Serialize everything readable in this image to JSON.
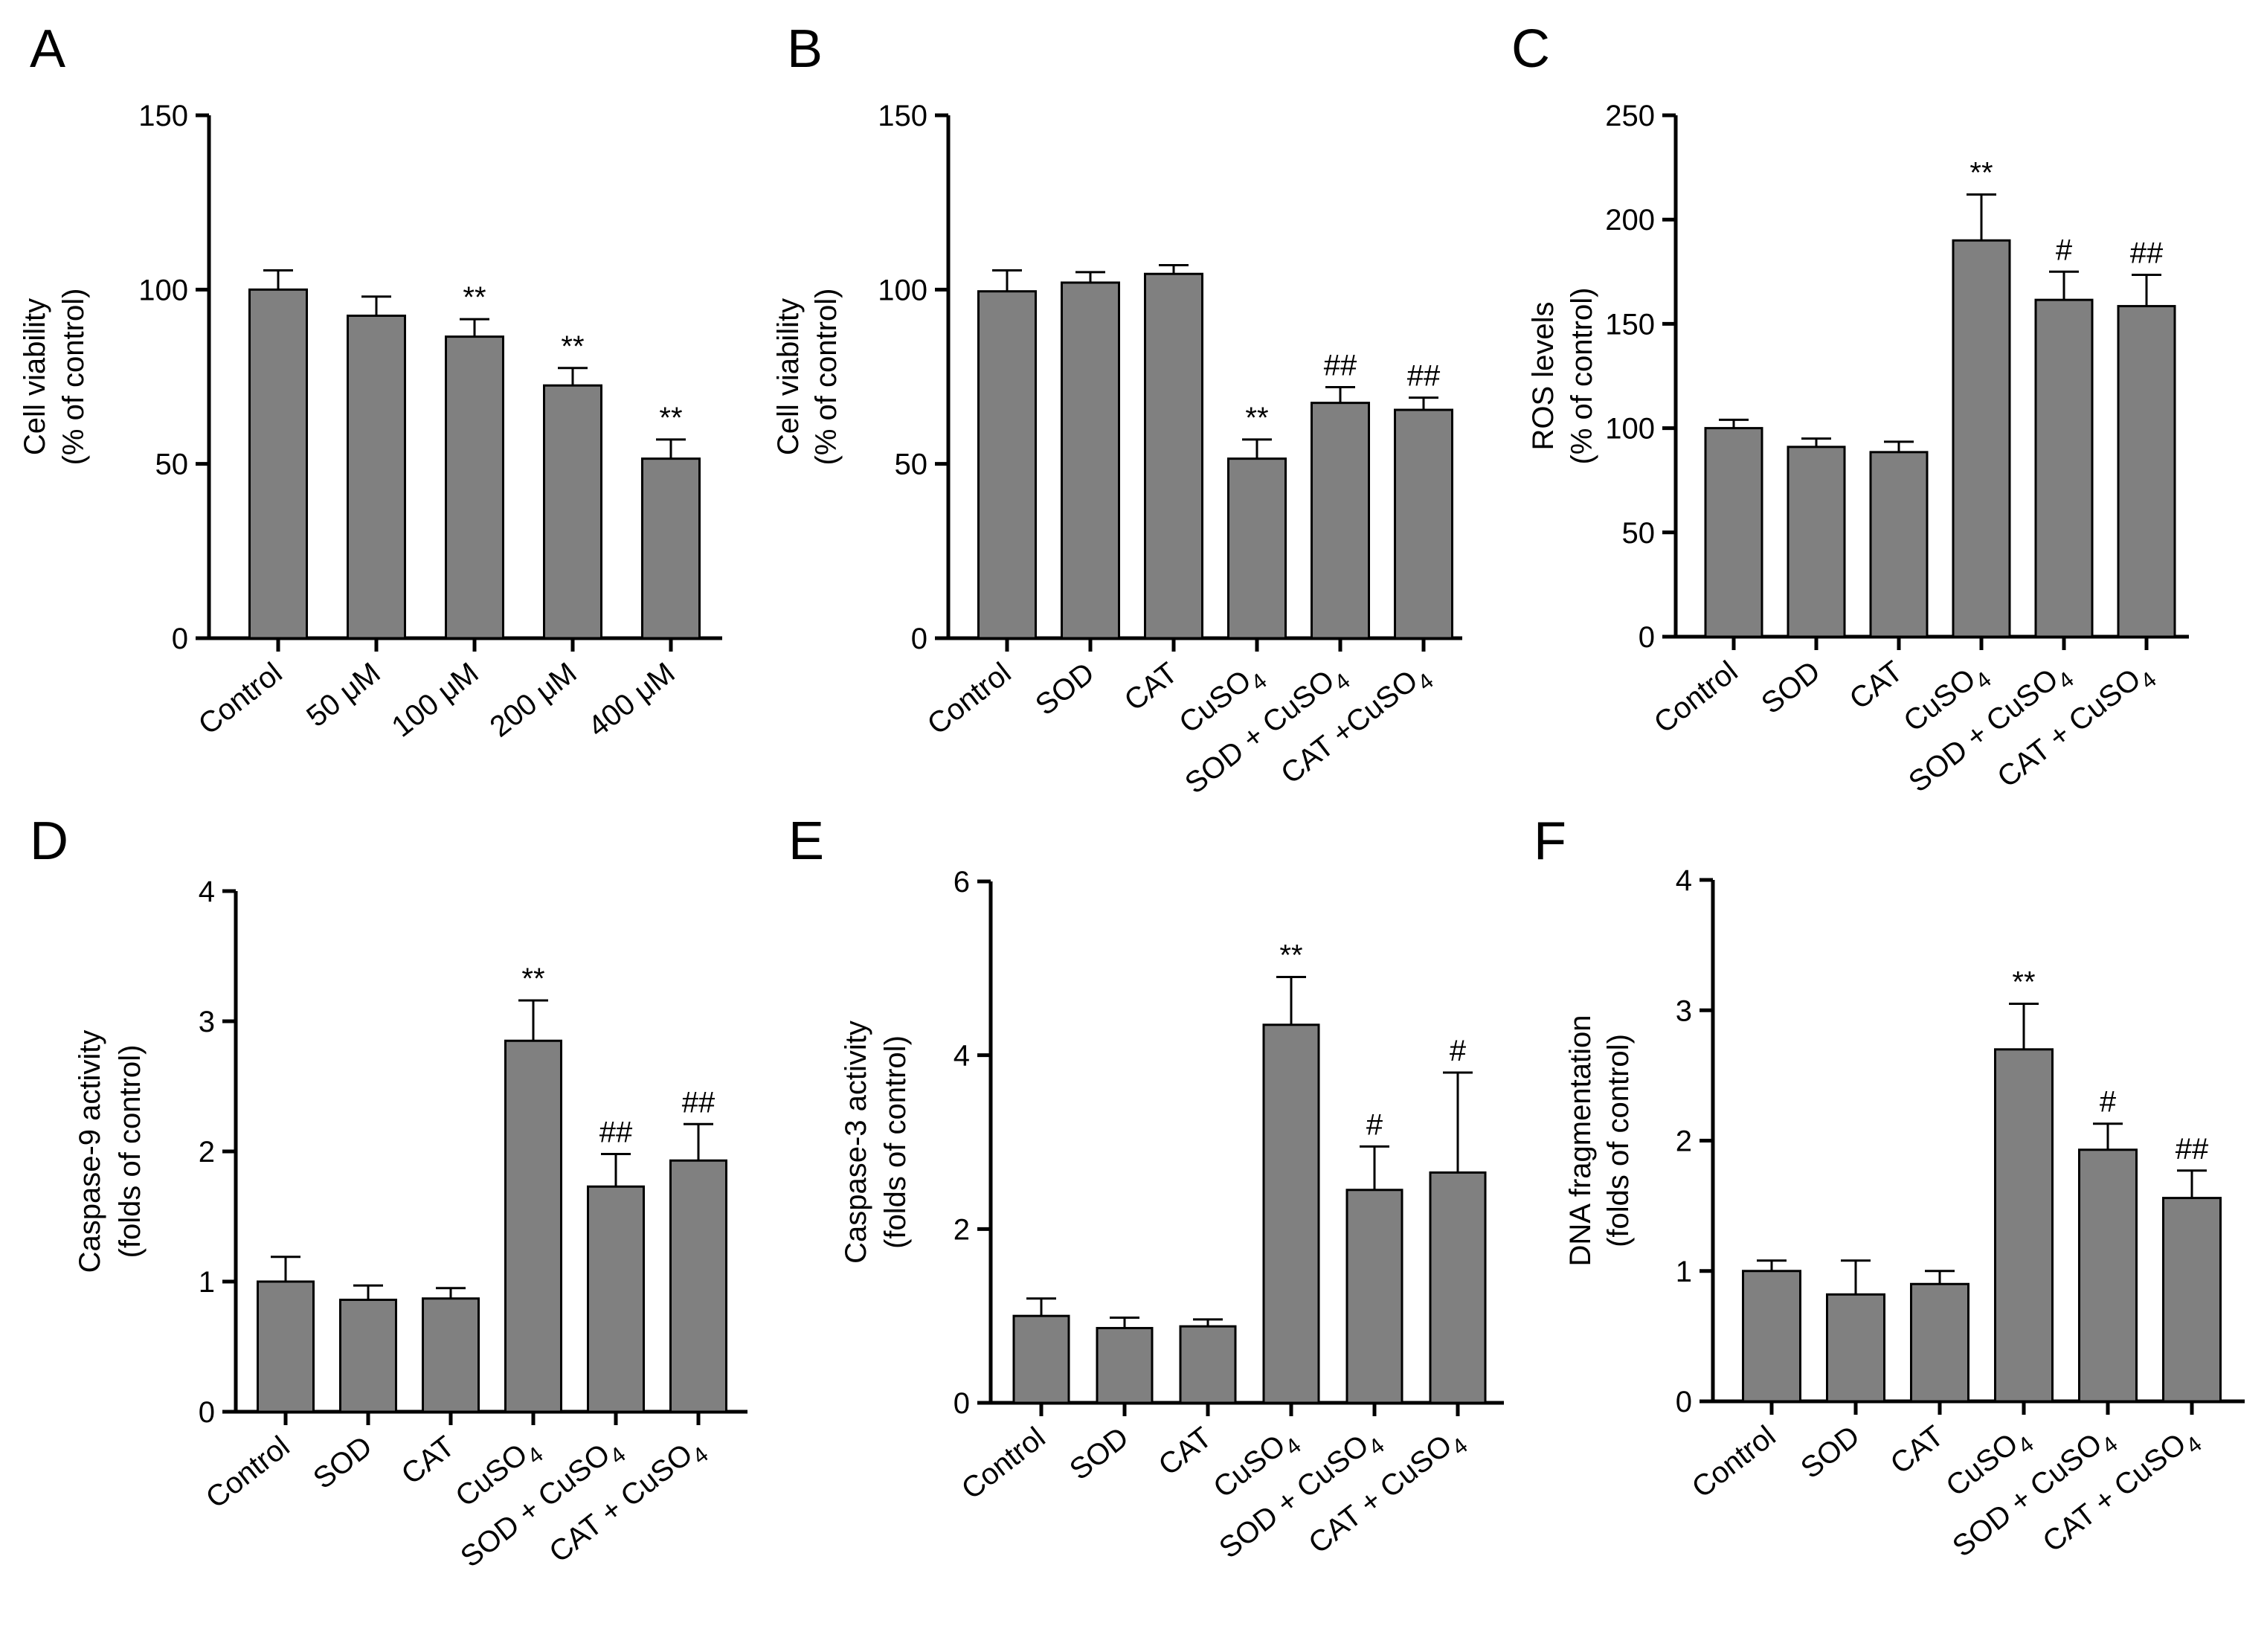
{
  "colors": {
    "bar": "#808080",
    "axis": "#000000",
    "background": "#ffffff"
  },
  "chart_data": [
    {
      "panel": "A",
      "type": "bar",
      "title": "",
      "xlabel": "",
      "ylabel": [
        "Cell viability",
        "(% of control)"
      ],
      "ylim": [
        0,
        150
      ],
      "yticks": [
        0,
        50,
        100,
        150
      ],
      "categories": [
        [
          "Control"
        ],
        [
          "50 μM"
        ],
        [
          "100 μM"
        ],
        [
          "200 μM"
        ],
        [
          "400 μM"
        ]
      ],
      "values": [
        100,
        92.5,
        86.5,
        72.5,
        51.5
      ],
      "errors": [
        5.5,
        5.5,
        5,
        5,
        5.5
      ],
      "significance": [
        "",
        "",
        "**",
        "**",
        "**"
      ]
    },
    {
      "panel": "B",
      "type": "bar",
      "title": "",
      "xlabel": "",
      "ylabel": [
        "Cell viability",
        "(% of control)"
      ],
      "ylim": [
        0,
        150
      ],
      "yticks": [
        0,
        50,
        100,
        150
      ],
      "categories": [
        [
          "Control"
        ],
        [
          "SOD"
        ],
        [
          "CAT"
        ],
        [
          "CuSO",
          "4",
          ""
        ],
        [
          "SOD + CuSO",
          "4",
          ""
        ],
        [
          "CAT +CuSO",
          "4",
          ""
        ]
      ],
      "values": [
        99.5,
        102,
        104.5,
        51.5,
        67.5,
        65.5
      ],
      "errors": [
        6,
        3,
        2.5,
        5.5,
        4.5,
        3.5
      ],
      "significance": [
        "",
        "",
        "",
        "**",
        "##",
        "##"
      ]
    },
    {
      "panel": "C",
      "type": "bar",
      "title": "",
      "xlabel": "",
      "ylabel": [
        "ROS levels",
        "(% of control)"
      ],
      "ylim": [
        0,
        250
      ],
      "yticks": [
        0,
        50,
        100,
        150,
        200,
        250
      ],
      "categories": [
        [
          "Control"
        ],
        [
          "SOD"
        ],
        [
          "CAT"
        ],
        [
          "CuSO",
          "4",
          ""
        ],
        [
          "SOD + CuSO",
          "4",
          ""
        ],
        [
          "CAT + CuSO",
          "4",
          ""
        ]
      ],
      "values": [
        100,
        91,
        88.5,
        190,
        161.5,
        158.5
      ],
      "errors": [
        4,
        4,
        5,
        22,
        13.5,
        15
      ],
      "significance": [
        "",
        "",
        "",
        "**",
        "#",
        "##"
      ]
    },
    {
      "panel": "D",
      "type": "bar",
      "title": "",
      "xlabel": "",
      "ylabel": [
        "Caspase-9 activity",
        "(folds of control)"
      ],
      "ylim": [
        0,
        4
      ],
      "yticks": [
        0,
        1,
        2,
        3,
        4
      ],
      "categories": [
        [
          "Control"
        ],
        [
          "SOD"
        ],
        [
          "CAT"
        ],
        [
          "CuSO",
          "4",
          ""
        ],
        [
          "SOD + CuSO",
          "4",
          ""
        ],
        [
          "CAT + CuSO",
          "4",
          ""
        ]
      ],
      "values": [
        1.0,
        0.86,
        0.87,
        2.85,
        1.73,
        1.93
      ],
      "errors": [
        0.19,
        0.11,
        0.08,
        0.31,
        0.25,
        0.28
      ],
      "significance": [
        "",
        "",
        "",
        "**",
        "##",
        "##"
      ]
    },
    {
      "panel": "E",
      "type": "bar",
      "title": "",
      "xlabel": "",
      "ylabel": [
        "Caspase-3 activity",
        "(folds of control)"
      ],
      "ylim": [
        0,
        6
      ],
      "yticks": [
        0,
        2,
        4,
        6
      ],
      "categories": [
        [
          "Control"
        ],
        [
          "SOD"
        ],
        [
          "CAT"
        ],
        [
          "CuSO",
          "4",
          ""
        ],
        [
          "SOD + CuSO",
          "4",
          ""
        ],
        [
          "CAT + CuSO",
          "4",
          ""
        ]
      ],
      "values": [
        1.0,
        0.86,
        0.88,
        4.35,
        2.45,
        2.65
      ],
      "errors": [
        0.2,
        0.12,
        0.08,
        0.55,
        0.5,
        1.15
      ],
      "significance": [
        "",
        "",
        "",
        "**",
        "#",
        "#"
      ]
    },
    {
      "panel": "F",
      "type": "bar",
      "title": "",
      "xlabel": "",
      "ylabel": [
        "DNA fragmentation",
        "(folds of control)"
      ],
      "ylim": [
        0,
        4
      ],
      "yticks": [
        0,
        1,
        2,
        3,
        4
      ],
      "categories": [
        [
          "Control"
        ],
        [
          "SOD"
        ],
        [
          "CAT"
        ],
        [
          "CuSO",
          "4",
          ""
        ],
        [
          "SOD + CuSO",
          "4",
          ""
        ],
        [
          "CAT + CuSO",
          "4",
          ""
        ]
      ],
      "values": [
        1.0,
        0.82,
        0.9,
        2.7,
        1.93,
        1.56
      ],
      "errors": [
        0.08,
        0.26,
        0.1,
        0.35,
        0.2,
        0.21
      ],
      "significance": [
        "",
        "",
        "",
        "**",
        "#",
        "##"
      ]
    }
  ]
}
